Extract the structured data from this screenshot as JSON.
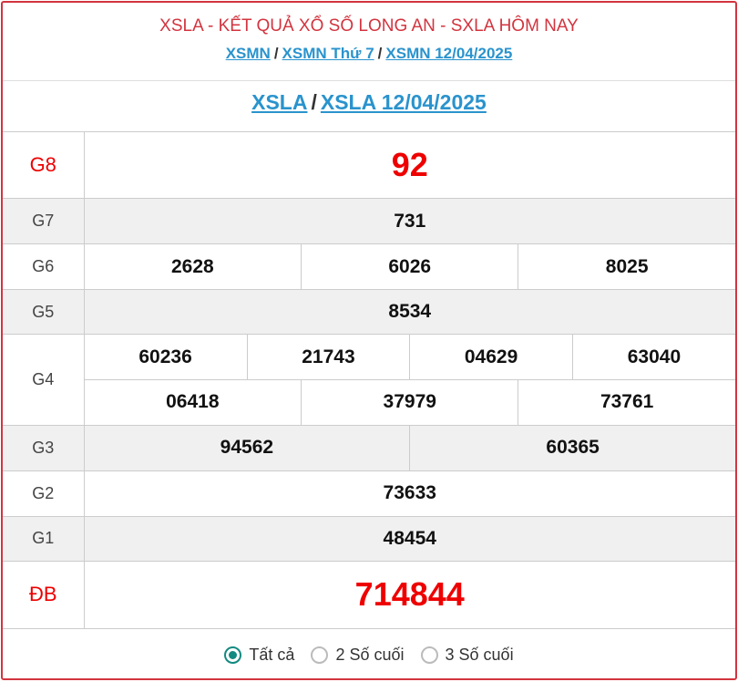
{
  "header": {
    "title": "XSLA - KẾT QUẢ XỔ SỐ LONG AN - SXLA HÔM NAY",
    "links": [
      "XSMN",
      "XSMN Thứ 7",
      "XSMN 12/04/2025"
    ],
    "separator": "/"
  },
  "subheader": {
    "links": [
      "XSLA",
      "XSLA 12/04/2025"
    ],
    "separator": "/"
  },
  "prizes": {
    "g8": {
      "label": "G8",
      "values": [
        "92"
      ]
    },
    "g7": {
      "label": "G7",
      "values": [
        "731"
      ]
    },
    "g6": {
      "label": "G6",
      "values": [
        "2628",
        "6026",
        "8025"
      ]
    },
    "g5": {
      "label": "G5",
      "values": [
        "8534"
      ]
    },
    "g4": {
      "label": "G4",
      "values": [
        "60236",
        "21743",
        "04629",
        "63040",
        "06418",
        "37979",
        "73761"
      ]
    },
    "g3": {
      "label": "G3",
      "values": [
        "94562",
        "60365"
      ]
    },
    "g2": {
      "label": "G2",
      "values": [
        "73633"
      ]
    },
    "g1": {
      "label": "G1",
      "values": [
        "48454"
      ]
    },
    "db": {
      "label": "ĐB",
      "values": [
        "714844"
      ]
    }
  },
  "filter": {
    "options": [
      "Tất cả",
      "2 Số cuối",
      "3 Số cuối"
    ],
    "selected": "Tất cả"
  },
  "colors": {
    "accent": "#d2343f",
    "link": "#2a93cd",
    "radio": "#138a80",
    "highlight": "#ee0000"
  }
}
